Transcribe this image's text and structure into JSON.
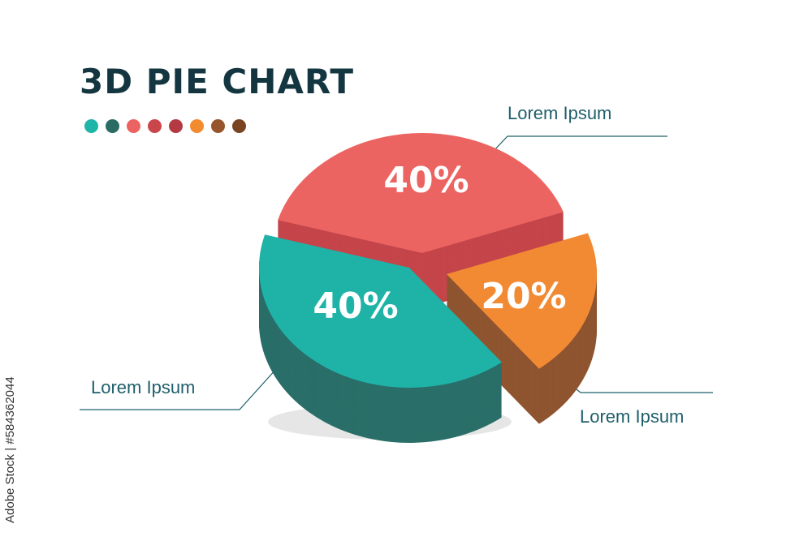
{
  "chart_data": {
    "type": "pie",
    "title": "3D PIE CHART",
    "three_d": true,
    "slices": [
      {
        "label": "Lorem Ipsum",
        "value": 40,
        "display": "40%",
        "top_color": "#ec6461",
        "side_color": "#c4454a"
      },
      {
        "label": "Lorem Ipsum",
        "value": 20,
        "display": "20%",
        "top_color": "#f28a33",
        "side_color": "#8f5530"
      },
      {
        "label": "Lorem Ipsum",
        "value": 40,
        "display": "40%",
        "top_color": "#1fb3a8",
        "side_color": "#2a6e69"
      }
    ],
    "palette": [
      "#1fb5a8",
      "#2a6b64",
      "#ec6461",
      "#c9464b",
      "#b33a42",
      "#f28a30",
      "#97552c",
      "#7a4422"
    ]
  },
  "watermark": "Adobe Stock | #584362044"
}
